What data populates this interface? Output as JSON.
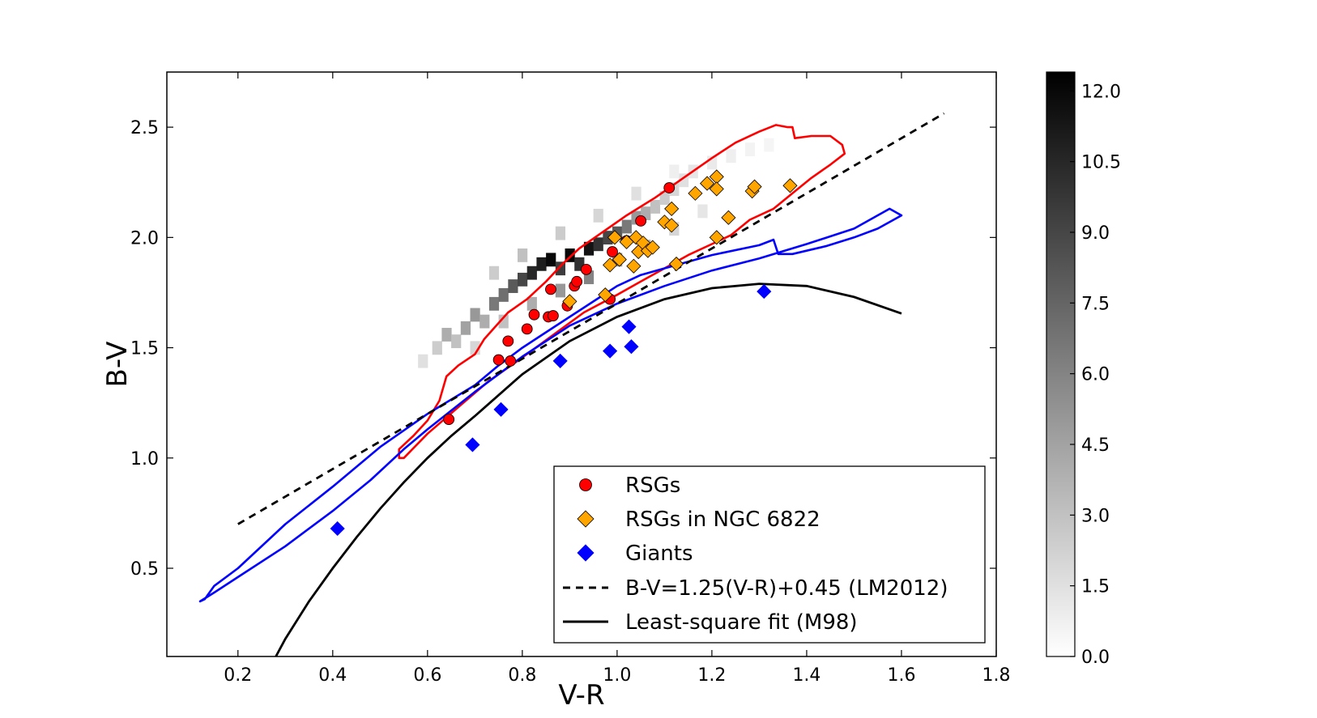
{
  "chart_data": {
    "type": "scatter",
    "title": "",
    "xlabel": "V-R",
    "ylabel": "B-V",
    "xlim": [
      0.05,
      1.8
    ],
    "ylim": [
      0.1,
      2.75
    ],
    "xticks": [
      0.2,
      0.4,
      0.6,
      0.8,
      1.0,
      1.2,
      1.4,
      1.6,
      1.8
    ],
    "xtick_labels": [
      "0.2",
      "0.4",
      "0.6",
      "0.8",
      "1.0",
      "1.2",
      "1.4",
      "1.6",
      "1.8"
    ],
    "yticks": [
      0.5,
      1.0,
      1.5,
      2.0,
      2.5
    ],
    "ytick_labels": [
      "0.5",
      "1.0",
      "1.5",
      "2.0",
      "2.5"
    ],
    "legend_position": "lower-right",
    "series": [
      {
        "name": "RSGs",
        "marker": "circle",
        "color": "#ff0000",
        "points": [
          [
            0.645,
            1.175
          ],
          [
            0.75,
            1.445
          ],
          [
            0.77,
            1.53
          ],
          [
            0.775,
            1.44
          ],
          [
            0.81,
            1.585
          ],
          [
            0.825,
            1.65
          ],
          [
            0.855,
            1.64
          ],
          [
            0.86,
            1.765
          ],
          [
            0.865,
            1.645
          ],
          [
            0.895,
            1.69
          ],
          [
            0.91,
            1.78
          ],
          [
            0.915,
            1.8
          ],
          [
            0.935,
            1.855
          ],
          [
            0.985,
            1.72
          ],
          [
            0.99,
            1.935
          ],
          [
            1.02,
            1.985
          ],
          [
            1.05,
            2.075
          ],
          [
            1.11,
            2.225
          ]
        ]
      },
      {
        "name": "RSGs in NGC 6822",
        "marker": "diamond",
        "color": "#ffa500",
        "points": [
          [
            0.9,
            1.71
          ],
          [
            0.975,
            1.74
          ],
          [
            0.985,
            1.875
          ],
          [
            0.995,
            2.0
          ],
          [
            1.005,
            1.9
          ],
          [
            1.02,
            1.98
          ],
          [
            1.035,
            1.87
          ],
          [
            1.04,
            2.0
          ],
          [
            1.045,
            1.935
          ],
          [
            1.055,
            1.975
          ],
          [
            1.065,
            1.94
          ],
          [
            1.075,
            1.955
          ],
          [
            1.1,
            2.07
          ],
          [
            1.115,
            2.13
          ],
          [
            1.115,
            2.055
          ],
          [
            1.125,
            1.88
          ],
          [
            1.165,
            2.2
          ],
          [
            1.19,
            2.245
          ],
          [
            1.21,
            2.275
          ],
          [
            1.21,
            2.22
          ],
          [
            1.21,
            2.0
          ],
          [
            1.235,
            2.09
          ],
          [
            1.285,
            2.21
          ],
          [
            1.29,
            2.23
          ],
          [
            1.365,
            2.235
          ]
        ]
      },
      {
        "name": "Giants",
        "marker": "diamond",
        "color": "#0000ff",
        "points": [
          [
            0.41,
            0.68
          ],
          [
            0.695,
            1.06
          ],
          [
            0.755,
            1.22
          ],
          [
            0.88,
            1.44
          ],
          [
            0.985,
            1.485
          ],
          [
            1.025,
            1.595
          ],
          [
            1.03,
            1.505
          ],
          [
            1.31,
            1.755
          ]
        ]
      }
    ],
    "lines": [
      {
        "name": "B-V=1.25(V-R)+0.45 (LM2012)",
        "style": "dashed",
        "color": "#000000",
        "x": [
          0.2,
          1.69
        ],
        "y": [
          0.7,
          2.5625
        ]
      },
      {
        "name": "Least-square fit (M98)",
        "style": "solid",
        "color": "#000000",
        "x": [
          0.28,
          0.3,
          0.35,
          0.4,
          0.45,
          0.5,
          0.55,
          0.6,
          0.65,
          0.7,
          0.8,
          0.9,
          1.0,
          1.1,
          1.2,
          1.3,
          1.4,
          1.5,
          1.6
        ],
        "y": [
          0.1,
          0.18,
          0.35,
          0.5,
          0.64,
          0.77,
          0.89,
          1.0,
          1.1,
          1.19,
          1.38,
          1.53,
          1.64,
          1.72,
          1.77,
          1.79,
          1.78,
          1.73,
          1.655
        ]
      }
    ],
    "contours": [
      {
        "name": "RSG model contour",
        "color": "#ff0000",
        "points": [
          [
            0.54,
            1.0
          ],
          [
            0.54,
            1.04
          ],
          [
            0.57,
            1.1
          ],
          [
            0.6,
            1.17
          ],
          [
            0.625,
            1.26
          ],
          [
            0.64,
            1.37
          ],
          [
            0.665,
            1.42
          ],
          [
            0.7,
            1.47
          ],
          [
            0.72,
            1.54
          ],
          [
            0.745,
            1.6
          ],
          [
            0.77,
            1.66
          ],
          [
            0.81,
            1.72
          ],
          [
            0.85,
            1.8
          ],
          [
            0.885,
            1.88
          ],
          [
            0.92,
            1.95
          ],
          [
            0.96,
            2.01
          ],
          [
            1.02,
            2.1
          ],
          [
            1.08,
            2.18
          ],
          [
            1.14,
            2.27
          ],
          [
            1.2,
            2.36
          ],
          [
            1.25,
            2.43
          ],
          [
            1.3,
            2.48
          ],
          [
            1.335,
            2.51
          ],
          [
            1.36,
            2.5
          ],
          [
            1.37,
            2.5
          ],
          [
            1.375,
            2.45
          ],
          [
            1.41,
            2.46
          ],
          [
            1.45,
            2.46
          ],
          [
            1.475,
            2.42
          ],
          [
            1.48,
            2.38
          ],
          [
            1.45,
            2.33
          ],
          [
            1.41,
            2.27
          ],
          [
            1.37,
            2.2
          ],
          [
            1.33,
            2.13
          ],
          [
            1.28,
            2.08
          ],
          [
            1.24,
            2.01
          ],
          [
            1.2,
            1.97
          ],
          [
            1.15,
            1.92
          ],
          [
            1.1,
            1.86
          ],
          [
            1.05,
            1.8
          ],
          [
            1.0,
            1.74
          ],
          [
            0.93,
            1.66
          ],
          [
            0.86,
            1.55
          ],
          [
            0.79,
            1.44
          ],
          [
            0.73,
            1.35
          ],
          [
            0.67,
            1.24
          ],
          [
            0.6,
            1.11
          ],
          [
            0.55,
            1.0
          ]
        ]
      },
      {
        "name": "Giant model contour",
        "color": "#0000ff",
        "points": [
          [
            0.12,
            0.35
          ],
          [
            0.15,
            0.39
          ],
          [
            0.2,
            0.46
          ],
          [
            0.3,
            0.6
          ],
          [
            0.4,
            0.76
          ],
          [
            0.48,
            0.9
          ],
          [
            0.55,
            1.04
          ],
          [
            0.6,
            1.13
          ],
          [
            0.7,
            1.3
          ],
          [
            0.8,
            1.46
          ],
          [
            0.9,
            1.6
          ],
          [
            1.0,
            1.7
          ],
          [
            1.1,
            1.78
          ],
          [
            1.2,
            1.85
          ],
          [
            1.3,
            1.905
          ],
          [
            1.4,
            1.97
          ],
          [
            1.5,
            2.04
          ],
          [
            1.575,
            2.13
          ],
          [
            1.6,
            2.1
          ],
          [
            1.55,
            2.04
          ],
          [
            1.5,
            2.0
          ],
          [
            1.44,
            1.96
          ],
          [
            1.4,
            1.94
          ],
          [
            1.37,
            1.925
          ],
          [
            1.34,
            1.925
          ],
          [
            1.33,
            1.99
          ],
          [
            1.3,
            1.965
          ],
          [
            1.2,
            1.92
          ],
          [
            1.1,
            1.86
          ],
          [
            1.05,
            1.83
          ],
          [
            1.0,
            1.78
          ],
          [
            0.95,
            1.71
          ],
          [
            0.9,
            1.64
          ],
          [
            0.85,
            1.57
          ],
          [
            0.8,
            1.5
          ],
          [
            0.75,
            1.42
          ],
          [
            0.7,
            1.33
          ],
          [
            0.6,
            1.2
          ],
          [
            0.5,
            1.05
          ],
          [
            0.4,
            0.87
          ],
          [
            0.3,
            0.7
          ],
          [
            0.2,
            0.5
          ],
          [
            0.15,
            0.42
          ],
          [
            0.13,
            0.36
          ]
        ]
      }
    ],
    "density_map": {
      "colormap": "gray_r",
      "cells": [
        [
          0.59,
          1.44,
          1.5
        ],
        [
          0.62,
          1.5,
          2.5
        ],
        [
          0.64,
          1.56,
          4.0
        ],
        [
          0.66,
          1.53,
          3.0
        ],
        [
          0.68,
          1.59,
          4.5
        ],
        [
          0.7,
          1.65,
          5.0
        ],
        [
          0.72,
          1.62,
          4.0
        ],
        [
          0.74,
          1.7,
          6.5
        ],
        [
          0.76,
          1.74,
          7.0
        ],
        [
          0.78,
          1.78,
          8.0
        ],
        [
          0.8,
          1.81,
          9.0
        ],
        [
          0.82,
          1.84,
          10.5
        ],
        [
          0.84,
          1.88,
          11.0
        ],
        [
          0.86,
          1.9,
          12.0
        ],
        [
          0.88,
          1.86,
          9.5
        ],
        [
          0.9,
          1.92,
          12.0
        ],
        [
          0.92,
          1.88,
          10.0
        ],
        [
          0.94,
          1.95,
          11.5
        ],
        [
          0.96,
          1.97,
          10.0
        ],
        [
          0.98,
          2.0,
          9.0
        ],
        [
          1.0,
          2.02,
          8.0
        ],
        [
          1.02,
          2.05,
          6.5
        ],
        [
          1.04,
          2.09,
          5.0
        ],
        [
          1.06,
          2.11,
          4.0
        ],
        [
          1.08,
          2.14,
          3.0
        ],
        [
          1.1,
          2.18,
          2.5
        ],
        [
          1.12,
          2.22,
          2.0
        ],
        [
          1.14,
          2.26,
          1.5
        ],
        [
          1.16,
          2.3,
          1.2
        ],
        [
          1.2,
          2.34,
          1.0
        ],
        [
          1.24,
          2.37,
          0.8
        ],
        [
          1.28,
          2.4,
          0.6
        ],
        [
          1.32,
          2.42,
          0.5
        ],
        [
          0.7,
          1.5,
          2.0
        ],
        [
          0.76,
          1.62,
          3.0
        ],
        [
          0.82,
          1.7,
          4.0
        ],
        [
          0.88,
          1.76,
          5.0
        ],
        [
          0.94,
          1.82,
          6.0
        ],
        [
          1.0,
          1.9,
          5.0
        ],
        [
          1.06,
          1.96,
          3.5
        ],
        [
          1.12,
          2.04,
          2.0
        ],
        [
          1.18,
          2.12,
          1.2
        ],
        [
          0.74,
          1.84,
          2.5
        ],
        [
          0.8,
          1.92,
          3.0
        ],
        [
          0.88,
          2.02,
          2.5
        ],
        [
          0.96,
          2.1,
          2.0
        ],
        [
          1.04,
          2.2,
          1.5
        ],
        [
          1.12,
          2.3,
          0.8
        ]
      ]
    },
    "colorbar": {
      "min": 0.0,
      "max": 12.4,
      "ticks": [
        0.0,
        1.5,
        3.0,
        4.5,
        6.0,
        7.5,
        9.0,
        10.5,
        12.0
      ],
      "tick_labels": [
        "0.0",
        "1.5",
        "3.0",
        "4.5",
        "6.0",
        "7.5",
        "9.0",
        "10.5",
        "12.0"
      ]
    },
    "legend": [
      {
        "label": "RSGs",
        "marker": "circle",
        "color": "#ff0000"
      },
      {
        "label": "RSGs in NGC 6822",
        "marker": "diamond",
        "color": "#ffa500"
      },
      {
        "label": "Giants",
        "marker": "diamond",
        "color": "#0000ff"
      },
      {
        "label": "B-V=1.25(V-R)+0.45 (LM2012)",
        "marker": "dashed-line",
        "color": "#000000"
      },
      {
        "label": "Least-square fit (M98)",
        "marker": "solid-line",
        "color": "#000000"
      }
    ]
  }
}
